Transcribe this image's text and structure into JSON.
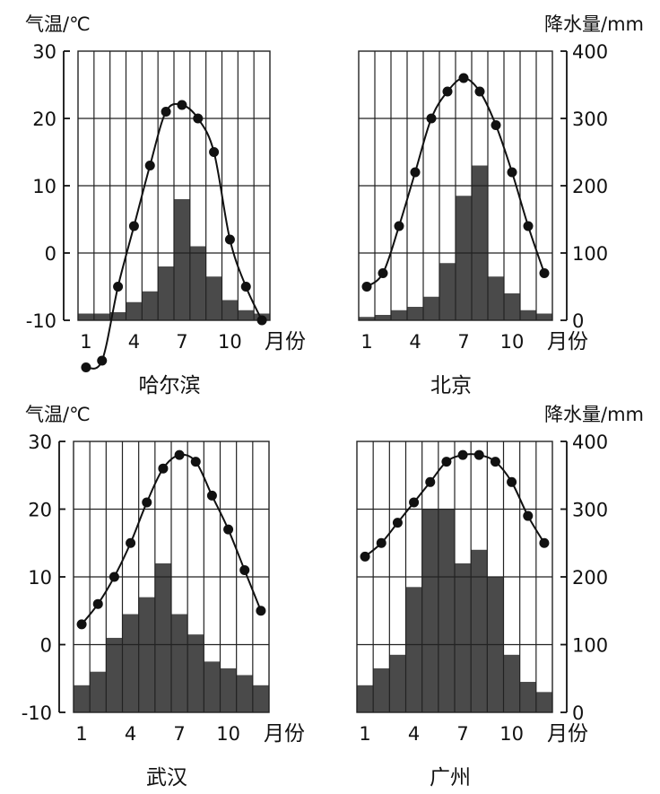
{
  "chart_data": [
    {
      "type": "bar+line",
      "title": "哈尔滨",
      "temp_axis_label": "气温/℃",
      "precip_axis_label": "",
      "xlabel": "月份",
      "months": [
        1,
        2,
        3,
        4,
        5,
        6,
        7,
        8,
        9,
        10,
        11,
        12
      ],
      "x_tick_labels": [
        "1",
        "4",
        "7",
        "10"
      ],
      "temp_ylim": [
        -10,
        30
      ],
      "temp_ticks": [
        "30",
        "20",
        "10",
        "0",
        "-10"
      ],
      "precip_ylim": [
        0,
        400
      ],
      "temperature": [
        -17,
        -16,
        -5,
        4,
        13,
        21,
        22,
        20,
        15,
        2,
        -5,
        -10
      ],
      "precipitation": [
        10,
        10,
        12,
        27,
        43,
        80,
        180,
        110,
        65,
        30,
        15,
        10
      ]
    },
    {
      "type": "bar+line",
      "title": "北京",
      "temp_axis_label": "",
      "precip_axis_label": "降水量/mm",
      "xlabel": "月份",
      "months": [
        1,
        2,
        3,
        4,
        5,
        6,
        7,
        8,
        9,
        10,
        11,
        12
      ],
      "x_tick_labels": [
        "1",
        "4",
        "7",
        "10"
      ],
      "temp_ylim": [
        -10,
        30
      ],
      "precip_ylim": [
        0,
        400
      ],
      "precip_ticks": [
        "400",
        "300",
        "200",
        "100",
        "0"
      ],
      "temperature": [
        -5,
        -3,
        4,
        12,
        20,
        24,
        26,
        24,
        19,
        12,
        4,
        -3
      ],
      "precipitation": [
        5,
        8,
        15,
        20,
        35,
        85,
        185,
        230,
        65,
        40,
        15,
        10
      ]
    },
    {
      "type": "bar+line",
      "title": "武汉",
      "temp_axis_label": "气温/℃",
      "precip_axis_label": "",
      "xlabel": "月份",
      "months": [
        1,
        2,
        3,
        4,
        5,
        6,
        7,
        8,
        9,
        10,
        11,
        12
      ],
      "x_tick_labels": [
        "1",
        "4",
        "7",
        "10"
      ],
      "temp_ylim": [
        -10,
        30
      ],
      "temp_ticks": [
        "30",
        "20",
        "10",
        "0",
        "-10"
      ],
      "precip_ylim": [
        0,
        400
      ],
      "temperature": [
        3,
        6,
        10,
        15,
        21,
        26,
        28,
        27,
        22,
        17,
        11,
        5
      ],
      "precipitation": [
        40,
        60,
        110,
        145,
        170,
        220,
        145,
        115,
        75,
        65,
        55,
        40
      ]
    },
    {
      "type": "bar+line",
      "title": "广州",
      "temp_axis_label": "",
      "precip_axis_label": "降水量/mm",
      "xlabel": "月份",
      "months": [
        1,
        2,
        3,
        4,
        5,
        6,
        7,
        8,
        9,
        10,
        11,
        12
      ],
      "x_tick_labels": [
        "1",
        "4",
        "7",
        "10"
      ],
      "temp_ylim": [
        -10,
        30
      ],
      "precip_ylim": [
        0,
        400
      ],
      "precip_ticks": [
        "400",
        "300",
        "200",
        "100",
        "0"
      ],
      "temperature": [
        13,
        15,
        18,
        21,
        24,
        27,
        28,
        28,
        27,
        24,
        19,
        15
      ],
      "precipitation": [
        40,
        65,
        85,
        185,
        300,
        300,
        220,
        240,
        200,
        85,
        45,
        30
      ]
    }
  ]
}
